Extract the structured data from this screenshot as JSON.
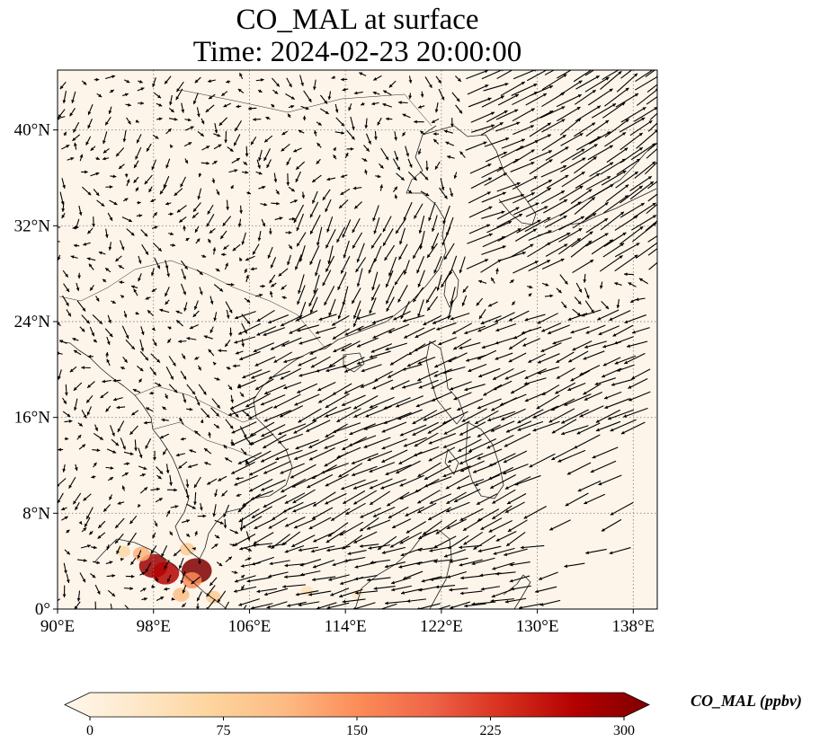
{
  "title": {
    "line1": "CO_MAL at surface",
    "line2": "Time: 2024-02-23 20:00:00"
  },
  "map": {
    "projection": "PlateCarree",
    "extent": {
      "lon": [
        90,
        140
      ],
      "lat": [
        0,
        45
      ]
    },
    "background_color": "#fdf5ea",
    "gridlines": "dotted",
    "x_ticks": [
      {
        "value": 90,
        "label": "90°E"
      },
      {
        "value": 98,
        "label": "98°E"
      },
      {
        "value": 106,
        "label": "106°E"
      },
      {
        "value": 114,
        "label": "114°E"
      },
      {
        "value": 122,
        "label": "122°E"
      },
      {
        "value": 130,
        "label": "130°E"
      },
      {
        "value": 138,
        "label": "138°E"
      }
    ],
    "y_ticks": [
      {
        "value": 0,
        "label": "0°"
      },
      {
        "value": 8,
        "label": "8°N"
      },
      {
        "value": 16,
        "label": "16°N"
      },
      {
        "value": 24,
        "label": "24°N"
      },
      {
        "value": 32,
        "label": "32°N"
      },
      {
        "value": 40,
        "label": "40°N"
      }
    ],
    "hotspots": [
      {
        "lon": 98.0,
        "lat": 3.6,
        "value": 280
      },
      {
        "lon": 99.0,
        "lat": 3.0,
        "value": 260
      },
      {
        "lon": 101.6,
        "lat": 3.2,
        "value": 300
      },
      {
        "lon": 101.2,
        "lat": 2.4,
        "value": 150
      },
      {
        "lon": 97.0,
        "lat": 4.6,
        "value": 120
      },
      {
        "lon": 95.5,
        "lat": 4.8,
        "value": 70
      },
      {
        "lon": 100.3,
        "lat": 1.2,
        "value": 110
      },
      {
        "lon": 103.0,
        "lat": 1.0,
        "value": 90
      },
      {
        "lon": 100.8,
        "lat": 5.0,
        "value": 90
      },
      {
        "lon": 110.8,
        "lat": 1.5,
        "value": 50
      },
      {
        "lon": 115.0,
        "lat": 1.2,
        "value": 40
      }
    ],
    "wind_pattern": "northeasterly monsoon flow over South China Sea, westerlies over Japan"
  },
  "colorbar": {
    "title": "CO_MAL (ppbv)",
    "min": 0,
    "max": 300,
    "extend": "both",
    "colormap": "OrRd",
    "colors": [
      "#fff7ec",
      "#fee8c8",
      "#fdd49e",
      "#fdbb84",
      "#fc8d59",
      "#ef6548",
      "#d7301f",
      "#b30000",
      "#7f0000"
    ],
    "ticks": [
      {
        "value": 0,
        "label": "0"
      },
      {
        "value": 75,
        "label": "75"
      },
      {
        "value": 150,
        "label": "150"
      },
      {
        "value": 225,
        "label": "225"
      },
      {
        "value": 300,
        "label": "300"
      }
    ]
  }
}
